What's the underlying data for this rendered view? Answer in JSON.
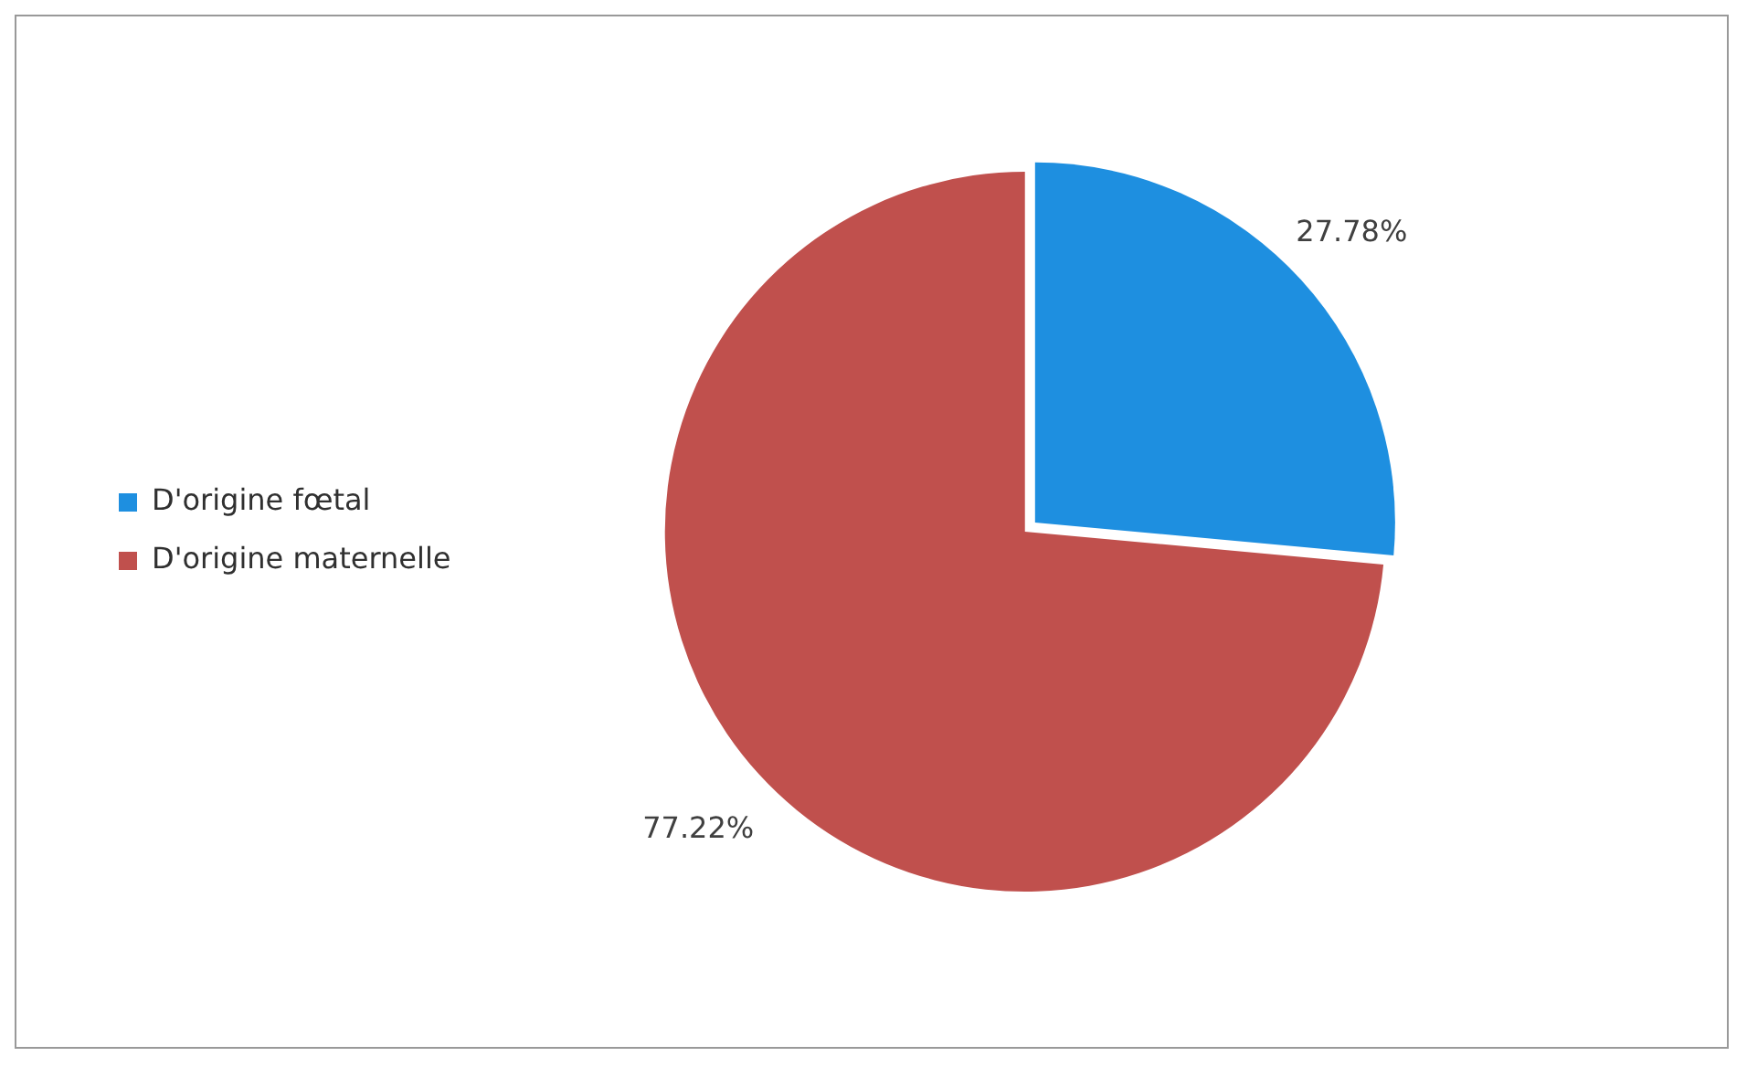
{
  "chart_data": {
    "type": "pie",
    "categories": [
      "D'origine fœtal",
      "D'origine maternelle"
    ],
    "values": [
      27.78,
      77.22
    ],
    "colors": [
      "#1e8fe0",
      "#c0504d"
    ],
    "value_labels": [
      "27.78%",
      "77.22%"
    ],
    "legend": "left"
  }
}
